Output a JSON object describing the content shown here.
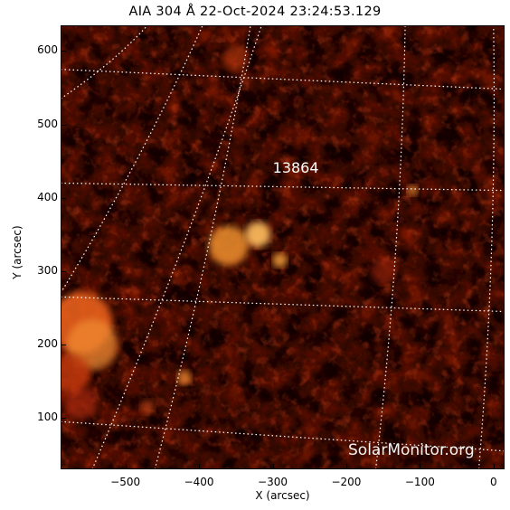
{
  "title": "AIA 304 Å 22-Oct-2024 23:24:53.129",
  "x_axis": {
    "label": "X (arcsec)",
    "ticks": [
      -500,
      -400,
      -300,
      -200,
      -100,
      0
    ],
    "tick_labels": [
      "−500",
      "−400",
      "−300",
      "−200",
      "−100",
      "0"
    ],
    "range": [
      -588,
      15
    ]
  },
  "y_axis": {
    "label": "Y (arcsec)",
    "ticks": [
      100,
      200,
      300,
      400,
      500,
      600
    ],
    "tick_labels": [
      "100",
      "200",
      "300",
      "400",
      "500",
      "600"
    ],
    "range": [
      30,
      635
    ]
  },
  "active_region": {
    "label": "13864",
    "x": -290,
    "y": 440
  },
  "watermark": "SolarMonitor.org",
  "colors": {
    "background": "#120000",
    "plasma_mid": "#b0200a",
    "plasma_bright": "#ffb040",
    "grid": "#ffffff"
  },
  "grid": "dotted heliographic",
  "colormap": "sdoaia304"
}
